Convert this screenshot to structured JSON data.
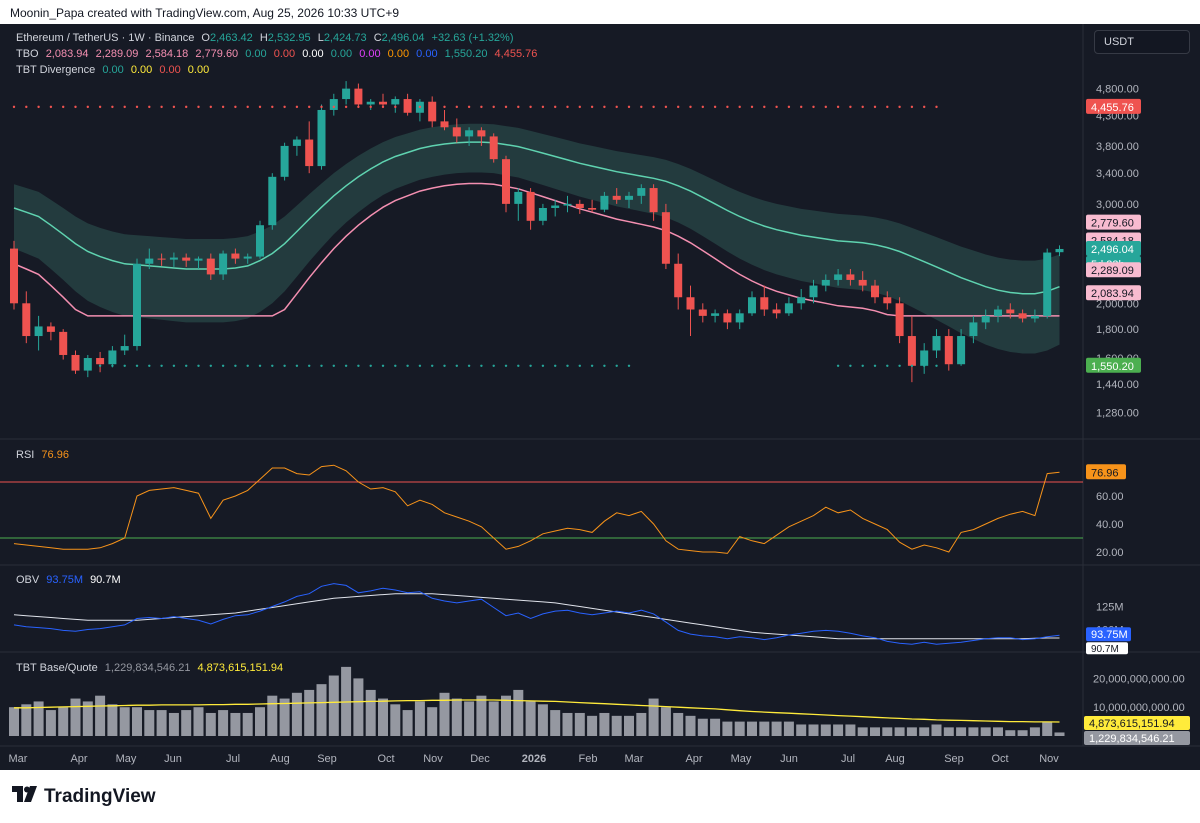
{
  "caption": "Moonin_Papa created with TradingView.com, Aug 25, 2026 10:33 UTC+9",
  "legend": {
    "symbol": "Ethereum / TetherUS · 1W · Binance",
    "o_label": "O",
    "o": "2,463.42",
    "h_label": "H",
    "h": "2,532.95",
    "l_label": "L",
    "l": "2,424.73",
    "c_label": "C",
    "c": "2,496.04",
    "change": "+32.63 (+1.32%)",
    "tbo_label": "TBO",
    "tbo_values": [
      "2,083.94",
      "2,289.09",
      "2,584.18",
      "2,779.60",
      "0.00",
      "0.00",
      "0.00",
      "0.00",
      "0.00",
      "0.00",
      "0.00",
      "1,550.20",
      "4,455.76"
    ],
    "tbt_div_label": "TBT Divergence",
    "tbt_div_values": [
      "0.00",
      "0.00",
      "0.00",
      "0.00"
    ],
    "rsi_label": "RSI",
    "rsi_value": "76.96",
    "obv_label": "OBV",
    "obv_values": [
      "93.75M",
      "90.7M"
    ],
    "bq_label": "TBT Base/Quote",
    "bq_values": [
      "1,229,834,546.21",
      "4,873,615,151.94"
    ]
  },
  "currency_button": "USDT",
  "price_axis": [
    "4,800.00",
    "4,300.00",
    "3,800.00",
    "3,400.00",
    "3,000.00",
    "2,000.00",
    "1,800.00",
    "1,600.00",
    "1,440.00",
    "1,280.00"
  ],
  "price_badges": {
    "red_top": "4,455.76",
    "pink1": "2,779.60",
    "pink2": "2,584.18",
    "last": "2,496.04",
    "countdown": "5d 23h",
    "pink3": "2,289.09",
    "pink4": "2,083.94",
    "green": "1,550.20"
  },
  "rsi_axis": [
    "60.00",
    "40.00",
    "20.00"
  ],
  "rsi_badge": "76.96",
  "obv_axis": [
    "125M",
    "100M"
  ],
  "obv_badges": [
    "93.75M",
    "90.7M"
  ],
  "bq_axis": [
    "20,000,000,000.00",
    "10,000,000,000.00"
  ],
  "bq_badges": [
    "4,873,615,151.94",
    "1,229,834,546.21"
  ],
  "time_axis": [
    "Mar",
    "Apr",
    "May",
    "Jun",
    "Jul",
    "Aug",
    "Sep",
    "Oct",
    "Nov",
    "Dec",
    "2026",
    "Feb",
    "Mar",
    "Apr",
    "May",
    "Jun",
    "Jul",
    "Aug",
    "Sep",
    "Oct",
    "Nov"
  ],
  "footer_logo": "TradingView",
  "colors": {
    "bg": "#161a25",
    "up": "#26a69a",
    "down": "#ef5350",
    "rsi": "#f7931a",
    "ma_mint": "#5fd3b0",
    "ma_pink": "#f48fb1",
    "obv": "#2962ff",
    "bq_ma": "#ffeb3b",
    "volume": "#9598a1"
  },
  "chart_data": [
    {
      "type": "candlestick",
      "title": "Ethereum / TetherUS · 1W · Binance",
      "ohlc": [
        [
          2500,
          2580,
          1950,
          2000
        ],
        [
          2000,
          2100,
          1700,
          1750
        ],
        [
          1750,
          1900,
          1650,
          1820
        ],
        [
          1820,
          1850,
          1720,
          1780
        ],
        [
          1780,
          1800,
          1590,
          1620
        ],
        [
          1620,
          1650,
          1500,
          1520
        ],
        [
          1520,
          1620,
          1480,
          1600
        ],
        [
          1600,
          1640,
          1510,
          1560
        ],
        [
          1560,
          1680,
          1540,
          1650
        ],
        [
          1650,
          1760,
          1620,
          1680
        ],
        [
          1680,
          2400,
          1650,
          2350
        ],
        [
          2350,
          2500,
          2300,
          2400
        ],
        [
          2400,
          2450,
          2330,
          2390
        ],
        [
          2390,
          2460,
          2320,
          2410
        ],
        [
          2410,
          2450,
          2320,
          2380
        ],
        [
          2380,
          2420,
          2300,
          2400
        ],
        [
          2400,
          2450,
          2200,
          2250
        ],
        [
          2250,
          2480,
          2200,
          2450
        ],
        [
          2450,
          2500,
          2350,
          2400
        ],
        [
          2400,
          2450,
          2350,
          2420
        ],
        [
          2420,
          2800,
          2400,
          2750
        ],
        [
          2750,
          3400,
          2700,
          3350
        ],
        [
          3350,
          3850,
          3300,
          3800
        ],
        [
          3800,
          3950,
          3650,
          3900
        ],
        [
          3900,
          4200,
          3400,
          3500
        ],
        [
          3500,
          4500,
          3450,
          4400
        ],
        [
          4400,
          4700,
          4300,
          4600
        ],
        [
          4600,
          4950,
          4500,
          4800
        ],
        [
          4800,
          4900,
          4450,
          4500
        ],
        [
          4500,
          4600,
          4400,
          4550
        ],
        [
          4550,
          4700,
          4450,
          4500
        ],
        [
          4500,
          4650,
          4350,
          4600
        ],
        [
          4600,
          4700,
          4300,
          4350
        ],
        [
          4350,
          4600,
          4200,
          4550
        ],
        [
          4550,
          4650,
          4100,
          4200
        ],
        [
          4200,
          4400,
          4050,
          4100
        ],
        [
          4100,
          4250,
          3850,
          3950
        ],
        [
          3950,
          4100,
          3800,
          4050
        ],
        [
          4050,
          4100,
          3800,
          3950
        ],
        [
          3950,
          4000,
          3550,
          3600
        ],
        [
          3600,
          3650,
          2900,
          3000
        ],
        [
          3000,
          3200,
          2800,
          3150
        ],
        [
          3150,
          3200,
          2700,
          2800
        ],
        [
          2800,
          3000,
          2750,
          2950
        ],
        [
          2950,
          3050,
          2850,
          2980
        ],
        [
          2980,
          3100,
          2900,
          3000
        ],
        [
          3000,
          3050,
          2880,
          2950
        ],
        [
          2950,
          3050,
          2900,
          2930
        ],
        [
          2930,
          3150,
          2900,
          3100
        ],
        [
          3100,
          3200,
          3000,
          3050
        ],
        [
          3050,
          3150,
          2950,
          3100
        ],
        [
          3100,
          3250,
          3000,
          3200
        ],
        [
          3200,
          3250,
          2800,
          2900
        ],
        [
          2900,
          3000,
          2300,
          2350
        ],
        [
          2350,
          2450,
          1950,
          2050
        ],
        [
          2050,
          2150,
          1750,
          1950
        ],
        [
          1950,
          2000,
          1850,
          1900
        ],
        [
          1900,
          1950,
          1850,
          1920
        ],
        [
          1920,
          1950,
          1800,
          1850
        ],
        [
          1850,
          1950,
          1800,
          1920
        ],
        [
          1920,
          2100,
          1900,
          2050
        ],
        [
          2050,
          2150,
          1900,
          1950
        ],
        [
          1950,
          2000,
          1880,
          1920
        ],
        [
          1920,
          2050,
          1900,
          2000
        ],
        [
          2000,
          2120,
          1950,
          2050
        ],
        [
          2050,
          2200,
          2000,
          2150
        ],
        [
          2150,
          2250,
          2100,
          2200
        ],
        [
          2200,
          2300,
          2150,
          2250
        ],
        [
          2250,
          2300,
          2150,
          2200
        ],
        [
          2200,
          2280,
          2100,
          2150
        ],
        [
          2150,
          2200,
          2000,
          2050
        ],
        [
          2050,
          2100,
          1950,
          2000
        ],
        [
          2000,
          2050,
          1700,
          1750
        ],
        [
          1750,
          1900,
          1450,
          1550
        ],
        [
          1550,
          1700,
          1500,
          1650
        ],
        [
          1650,
          1800,
          1600,
          1750
        ],
        [
          1750,
          1800,
          1520,
          1560
        ],
        [
          1560,
          1800,
          1550,
          1750
        ],
        [
          1750,
          1900,
          1700,
          1850
        ],
        [
          1850,
          1950,
          1800,
          1900
        ],
        [
          1900,
          1980,
          1850,
          1950
        ],
        [
          1950,
          2000,
          1880,
          1920
        ],
        [
          1920,
          1950,
          1850,
          1880
        ],
        [
          1880,
          1950,
          1850,
          1900
        ],
        [
          1900,
          2500,
          1880,
          2460
        ],
        [
          2463.42,
          2532.95,
          2424.73,
          2496.04
        ]
      ],
      "ma_mint": [
        2950,
        2900,
        2850,
        2750,
        2650,
        2550,
        2470,
        2420,
        2380,
        2350,
        2340,
        2330,
        2320,
        2310,
        2300,
        2300,
        2300,
        2300,
        2310,
        2330,
        2380,
        2450,
        2550,
        2680,
        2820,
        2960,
        3100,
        3230,
        3350,
        3460,
        3560,
        3640,
        3700,
        3760,
        3800,
        3830,
        3850,
        3860,
        3860,
        3850,
        3820,
        3790,
        3740,
        3690,
        3640,
        3590,
        3540,
        3500,
        3460,
        3420,
        3390,
        3360,
        3330,
        3290,
        3230,
        3160,
        3080,
        3000,
        2920,
        2850,
        2790,
        2740,
        2700,
        2670,
        2640,
        2620,
        2600,
        2580,
        2570,
        2560,
        2540,
        2510,
        2470,
        2420,
        2370,
        2320,
        2270,
        2220,
        2180,
        2140,
        2110,
        2090,
        2080,
        2080,
        2100,
        2140
      ],
      "rsi": [
        26,
        25,
        24,
        23,
        22,
        22,
        22,
        23,
        26,
        30,
        60,
        64,
        65,
        66,
        64,
        62,
        44,
        57,
        60,
        64,
        72,
        80,
        80,
        76,
        75,
        81,
        82,
        78,
        70,
        65,
        66,
        63,
        53,
        57,
        54,
        48,
        45,
        42,
        38,
        30,
        22,
        24,
        28,
        33,
        35,
        37,
        36,
        34,
        42,
        48,
        46,
        49,
        40,
        28,
        22,
        21,
        20,
        20,
        19,
        31,
        28,
        26,
        32,
        38,
        42,
        46,
        52,
        48,
        50,
        44,
        40,
        36,
        27,
        22,
        25,
        23,
        20,
        34,
        36,
        40,
        44,
        47,
        49,
        46,
        76,
        77
      ],
      "obv_m": [
        105,
        103,
        102,
        101,
        99,
        98,
        100,
        101,
        103,
        105,
        112,
        113,
        112,
        114,
        112,
        110,
        106,
        111,
        115,
        116,
        120,
        125,
        130,
        136,
        139,
        147,
        150,
        148,
        140,
        142,
        145,
        143,
        140,
        141,
        134,
        131,
        129,
        131,
        133,
        124,
        115,
        118,
        112,
        117,
        120,
        121,
        118,
        116,
        118,
        120,
        118,
        121,
        117,
        108,
        99,
        95,
        93,
        92,
        90,
        92,
        91,
        89,
        91,
        94,
        96,
        98,
        99,
        98,
        96,
        93,
        91,
        87,
        85,
        84,
        86,
        84,
        85,
        86,
        88,
        90,
        91,
        91,
        89,
        90,
        92,
        93.75
      ],
      "obv_ma_m": [
        116,
        115,
        114,
        113,
        112,
        111,
        110,
        110,
        110,
        110,
        110,
        111,
        112,
        113,
        114,
        115,
        116,
        117,
        118,
        120,
        122,
        124,
        126,
        128,
        130,
        132,
        134,
        135,
        136,
        137,
        138,
        139,
        139,
        139,
        139,
        138,
        137,
        136,
        135,
        134,
        133,
        132,
        131,
        130,
        129,
        127,
        125,
        123,
        121,
        119,
        117,
        115,
        113,
        111,
        109,
        107,
        105,
        103,
        101,
        99,
        97,
        96,
        95,
        94,
        93,
        92,
        91,
        90,
        90,
        90,
        90,
        90,
        90,
        90,
        90,
        90,
        90,
        90,
        90,
        90,
        90,
        90,
        90,
        90.5,
        90.7,
        90.7
      ],
      "volume_b": [
        10,
        11,
        12,
        9,
        10,
        13,
        12,
        14,
        11,
        10,
        10,
        9,
        9,
        8,
        9,
        10,
        8,
        9,
        8,
        8,
        10,
        14,
        13,
        15,
        16,
        18,
        21,
        24,
        20,
        16,
        13,
        11,
        9,
        12,
        10,
        15,
        13,
        12,
        14,
        12,
        14,
        16,
        12,
        11,
        9,
        8,
        8,
        7,
        8,
        7,
        7,
        8,
        13,
        10,
        8,
        7,
        6,
        6,
        5,
        5,
        5,
        5,
        5,
        5,
        4,
        4,
        4,
        4,
        4,
        3,
        3,
        3,
        3,
        3,
        3,
        4,
        3,
        3,
        3,
        3,
        3,
        2,
        2,
        3,
        5,
        1.23
      ],
      "volume_ma_b": [
        9.8,
        9.8,
        9.9,
        10,
        10.1,
        10.2,
        10.3,
        10.4,
        10.5,
        10.6,
        10.7,
        10.7,
        10.8,
        10.8,
        10.8,
        10.8,
        10.9,
        10.9,
        11,
        11,
        11.1,
        11.2,
        11.3,
        11.4,
        11.5,
        11.6,
        11.7,
        11.8,
        11.9,
        12,
        12.1,
        12.2,
        12.3,
        12.3,
        12.4,
        12.4,
        12.5,
        12.5,
        12.5,
        12.5,
        12.4,
        12.3,
        12.2,
        12.1,
        12,
        11.8,
        11.6,
        11.4,
        11.2,
        11,
        10.8,
        10.6,
        10.4,
        10.2,
        10,
        9.8,
        9.6,
        9.4,
        9.1,
        8.8,
        8.5,
        8.3,
        8.1,
        7.9,
        7.7,
        7.5,
        7.3,
        7.1,
        6.9,
        6.7,
        6.5,
        6.3,
        6.1,
        5.9,
        5.8,
        5.6,
        5.5,
        5.4,
        5.3,
        5.2,
        5.1,
        5,
        5,
        4.9,
        4.9,
        4.87
      ]
    }
  ]
}
